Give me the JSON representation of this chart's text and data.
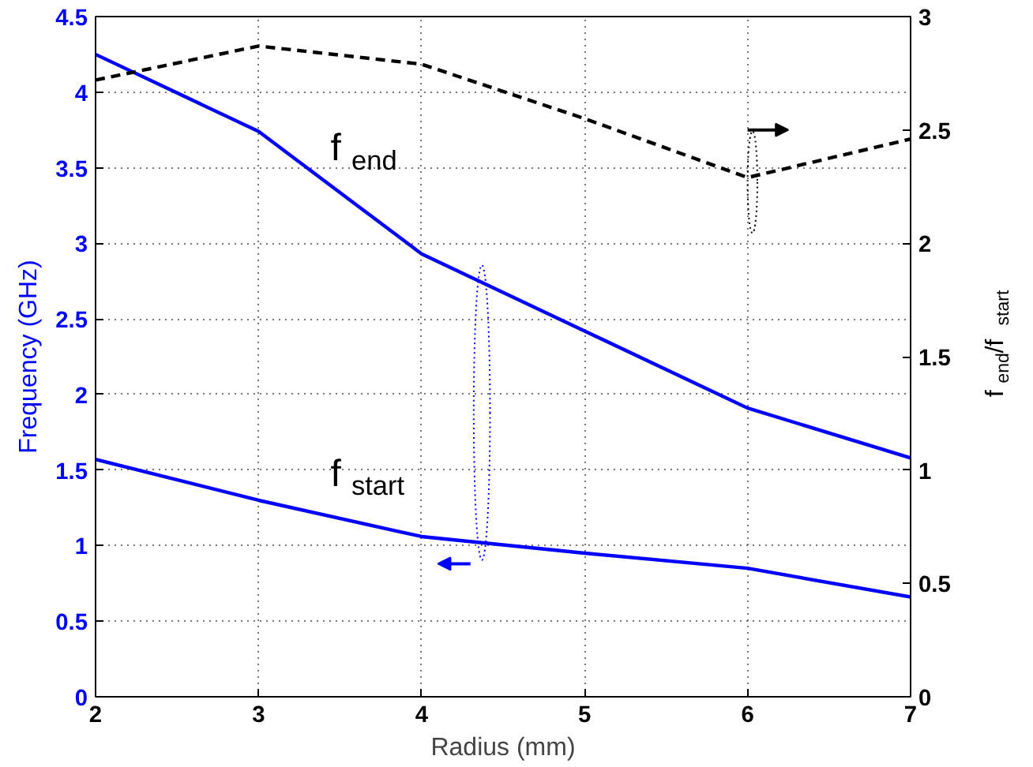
{
  "chart_data": {
    "type": "line",
    "xlabel": "Radius (mm)",
    "ylabel": "Frequency (GHz)",
    "y2label": "f$_{end}$/f$_{start}$",
    "x": [
      2,
      3,
      4,
      5,
      6,
      7
    ],
    "series": [
      {
        "name": "f$_{end}$",
        "color": "#0000ff",
        "values": [
          4.25,
          3.74,
          2.93,
          2.42,
          1.91,
          1.58
        ]
      },
      {
        "name": "f$_{start}$",
        "color": "#0000ff",
        "values": [
          1.57,
          1.3,
          1.06,
          0.95,
          0.85,
          0.66
        ]
      },
      {
        "color": "#000000",
        "axis": "y2",
        "line_style": "dashed",
        "values": [
          2.72,
          2.87,
          2.79,
          2.55,
          2.29,
          2.46
        ]
      }
    ],
    "xlim": [
      2,
      7
    ],
    "xticks": [
      2,
      3,
      4,
      5,
      6,
      7
    ],
    "ylim": [
      0,
      4.5
    ],
    "yticks": [
      0,
      0.5,
      1,
      1.5,
      2,
      2.5,
      3,
      3.5,
      4,
      4.5
    ],
    "y2lim": [
      0,
      3
    ],
    "y2ticks": [
      0,
      0.5,
      1,
      1.5,
      2,
      2.5,
      3
    ],
    "grid": true,
    "legend": false
  }
}
